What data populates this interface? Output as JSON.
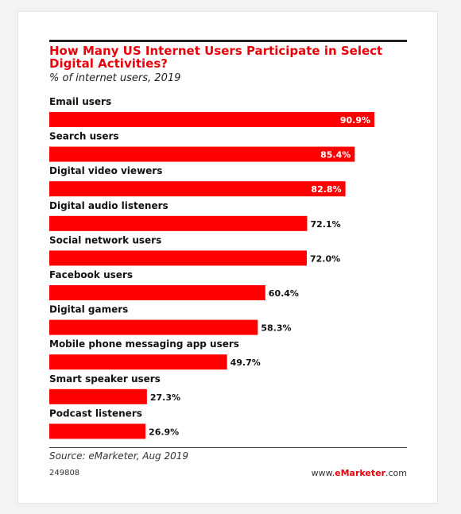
{
  "colors": {
    "bar": "#ff0000",
    "title": "#e8000b",
    "text": "#111111"
  },
  "header": {
    "title": "How Many US Internet Users Participate in Select Digital Activities?",
    "subtitle": "% of internet users, 2019"
  },
  "chart_data": {
    "type": "bar",
    "orientation": "horizontal",
    "title": "How Many US Internet Users Participate in Select Digital Activities?",
    "subtitle": "% of internet users, 2019",
    "categories": [
      "Email users",
      "Search users",
      "Digital video viewers",
      "Digital audio listeners",
      "Social network users",
      "Facebook users",
      "Digital gamers",
      "Mobile phone messaging app users",
      "Smart speaker users",
      "Podcast listeners"
    ],
    "values": [
      90.9,
      85.4,
      82.8,
      72.1,
      72.0,
      60.4,
      58.3,
      49.7,
      27.3,
      26.9
    ],
    "value_labels": [
      "90.9%",
      "85.4%",
      "82.8%",
      "72.1%",
      "72.0%",
      "60.4%",
      "58.3%",
      "49.7%",
      "27.3%",
      "26.9%"
    ],
    "xlim": [
      0,
      100
    ],
    "grid": false,
    "legend": "none"
  },
  "footer": {
    "source": "Source: eMarketer, Aug 2019",
    "chart_id": "249808",
    "site_prefix": "www.",
    "site_brand": "eMarketer",
    "site_suffix": ".com"
  }
}
